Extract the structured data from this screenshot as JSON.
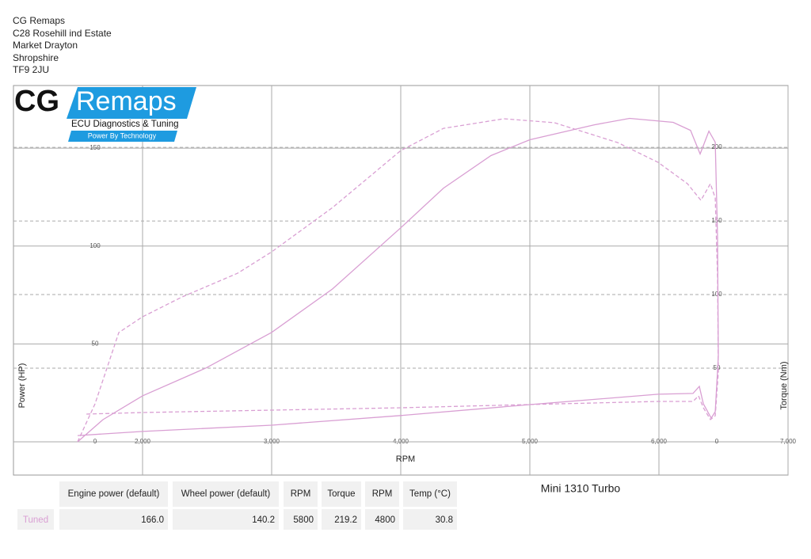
{
  "header": {
    "lines": [
      "CG Remaps",
      "C28 Rosehill ind Estate",
      "Market Drayton",
      "Shropshire",
      "TF9 2JU"
    ]
  },
  "logo": {
    "brand_left": "CG",
    "brand_right": "Remaps",
    "tagline": "ECU Diagnostics & Tuning",
    "slogan": "Power By Technology"
  },
  "chart_data": {
    "type": "line",
    "xlabel": "RPM",
    "ylabel": "Power (HP)",
    "y2label": "Torque (Nm)",
    "xlim": [
      1000,
      7000
    ],
    "xticks": [
      {
        "value": 2000,
        "label": "2,000"
      },
      {
        "value": 3000,
        "label": "3,000"
      },
      {
        "value": 4000,
        "label": "4,000"
      },
      {
        "value": 5000,
        "label": "5,000"
      },
      {
        "value": 6000,
        "label": "6,000"
      },
      {
        "value": 7000,
        "label": "7,000"
      }
    ],
    "ylim": [
      -17,
      182
    ],
    "yticks": [
      0,
      50,
      100,
      150
    ],
    "y2lim": [
      -22.6,
      242
    ],
    "y2ticks": [
      0,
      50,
      100,
      150,
      200
    ],
    "grid": true,
    "series": [
      {
        "name": "Power",
        "color": "#d99fd3",
        "style": "solid",
        "axis": "y",
        "x": [
          1497,
          1693,
          2000,
          2491,
          3000,
          3472,
          4000,
          4331,
          4699,
          5000,
          5497,
          5773,
          6110,
          6245,
          6319,
          6387,
          6436,
          6454,
          6460,
          6436,
          6405,
          6344,
          6313,
          6264,
          5994,
          5000,
          4000,
          3000,
          2000,
          1497
        ],
        "values": [
          0,
          11.3,
          23.5,
          37.7,
          55.9,
          78.1,
          109.3,
          129.6,
          146.2,
          154.3,
          161.9,
          165.2,
          163.2,
          159.1,
          147.0,
          158.7,
          153.0,
          104.5,
          43.7,
          15.4,
          12.1,
          19.4,
          28.3,
          24.7,
          24.3,
          19.0,
          13.4,
          8.5,
          5.3,
          3.2
        ]
      },
      {
        "name": "Torque",
        "color": "#d99fd3",
        "style": "dashed",
        "axis": "y2",
        "x": [
          1497,
          1632,
          1816,
          2000,
          2307,
          2736,
          3000,
          3472,
          4000,
          4331,
          4798,
          5190,
          5681,
          5994,
          6221,
          6325,
          6399,
          6436,
          6454,
          6460,
          6436,
          6399,
          6344,
          6307,
          6264,
          5994,
          5000,
          4000,
          3000,
          2000,
          1558
        ],
        "values": [
          0,
          25.8,
          74.2,
          84.9,
          98.4,
          114.5,
          129.0,
          159.1,
          197.8,
          212.9,
          219.4,
          216.7,
          203.2,
          189.8,
          175.3,
          164.0,
          175.3,
          165.6,
          111.8,
          47.3,
          17.7,
          15.1,
          23.1,
          31.2,
          27.4,
          27.4,
          25.3,
          23.1,
          21.5,
          19.9,
          18.8
        ]
      }
    ]
  },
  "vehicle": "Mini 1310 Turbo",
  "table": {
    "headers": [
      "Engine power (default)",
      "Wheel power (default)",
      "RPM",
      "Torque",
      "RPM",
      "Temp (°C)"
    ],
    "row_label": "Tuned",
    "row": [
      "166.0",
      "140.2",
      "5800",
      "219.2",
      "4800",
      "30.8"
    ]
  }
}
